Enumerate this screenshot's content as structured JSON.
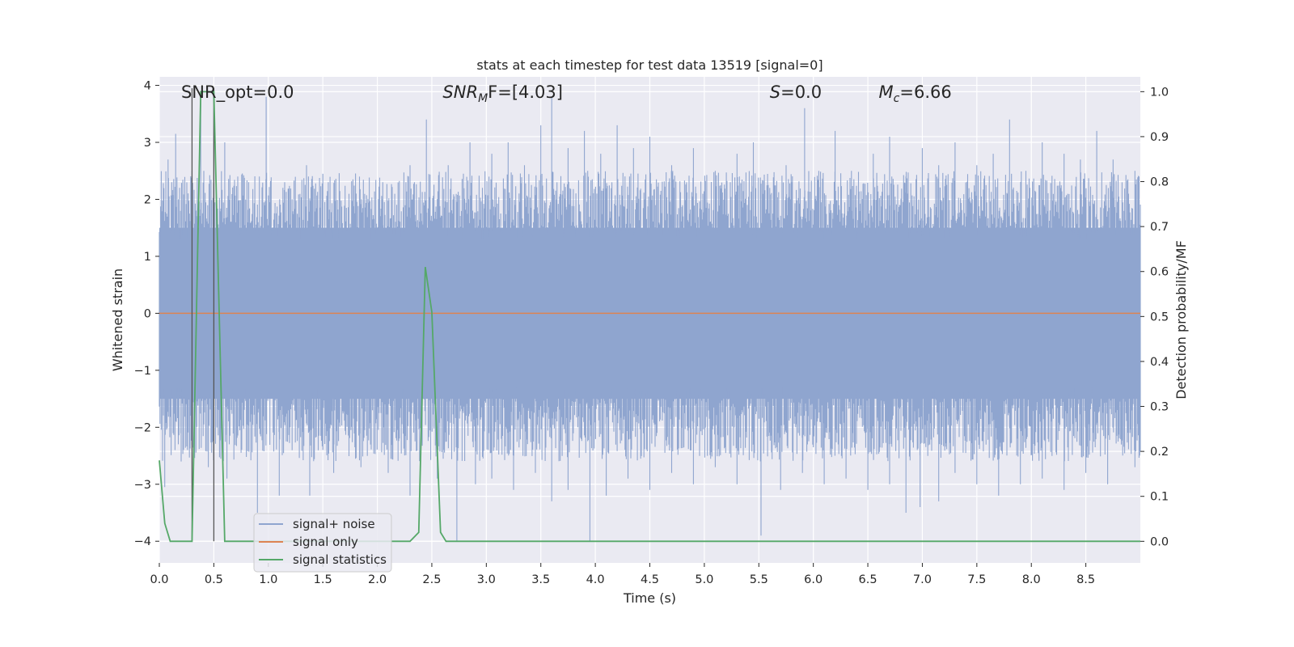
{
  "chart_data": {
    "type": "line",
    "title": "stats at each timestep for test data 13519 [signal=0]",
    "xlabel": "Time (s)",
    "ylabel": "Whitened strain",
    "y2label": "Detection probability/MF",
    "xlim": [
      0.0,
      9.0
    ],
    "ylim": [
      -4.38,
      4.15
    ],
    "y2lim": [
      -0.048,
      1.033
    ],
    "x_ticks": [
      0.0,
      0.5,
      1.0,
      1.5,
      2.0,
      2.5,
      3.0,
      3.5,
      4.0,
      4.5,
      5.0,
      5.5,
      6.0,
      6.5,
      7.0,
      7.5,
      8.0,
      8.5
    ],
    "x_tick_labels": [
      "0.0",
      "0.5",
      "1.0",
      "1.5",
      "2.0",
      "2.5",
      "3.0",
      "3.5",
      "4.0",
      "4.5",
      "5.0",
      "5.5",
      "6.0",
      "6.5",
      "7.0",
      "7.5",
      "8.0",
      "8.5"
    ],
    "y_ticks": [
      -4,
      -3,
      -2,
      -1,
      0,
      1,
      2,
      3,
      4
    ],
    "y_tick_labels": [
      "−4",
      "−3",
      "−2",
      "−1",
      "0",
      "1",
      "2",
      "3",
      "4"
    ],
    "y2_ticks": [
      0.0,
      0.1,
      0.2,
      0.3,
      0.4,
      0.5,
      0.6,
      0.7,
      0.8,
      0.9,
      1.0
    ],
    "y2_tick_labels": [
      "0.0",
      "0.1",
      "0.2",
      "0.3",
      "0.4",
      "0.5",
      "0.6",
      "0.7",
      "0.8",
      "0.9",
      "1.0"
    ],
    "grid": true,
    "legend_position": "bottom-left",
    "annotations": [
      {
        "label": "SNR_opt=0.0",
        "x": 0.2
      },
      {
        "label": "SNR",
        "sub": "M",
        "suffix": "F=[4.03]",
        "x": 2.6
      },
      {
        "label": "S",
        "suffix": "=0.0",
        "x": 5.6
      },
      {
        "label": "M",
        "sub": "c",
        "suffix": "=6.66",
        "x": 6.6
      }
    ],
    "vlines": [
      0.3,
      0.5
    ],
    "series": [
      {
        "name": "signal+ noise",
        "color": "#8fa5cf",
        "description_values": "noise band approx. +/-1.5 with spikes",
        "envelope": {
          "x_start": 0.0,
          "x_end": 9.0,
          "y_core": [
            -1.5,
            1.5
          ],
          "y_max_peaks": [
            [
              0.08,
              2.7
            ],
            [
              0.15,
              3.15
            ],
            [
              0.3,
              2.5
            ],
            [
              0.38,
              3.9
            ],
            [
              0.5,
              3.6
            ],
            [
              0.6,
              3.0
            ],
            [
              0.72,
              2.4
            ],
            [
              0.82,
              2.3
            ],
            [
              0.98,
              3.8
            ],
            [
              1.15,
              2.3
            ],
            [
              1.35,
              2.6
            ],
            [
              1.55,
              2.3
            ],
            [
              1.8,
              2.4
            ],
            [
              2.05,
              2.3
            ],
            [
              2.3,
              2.6
            ],
            [
              2.45,
              3.4
            ],
            [
              2.65,
              2.6
            ],
            [
              2.85,
              3.0
            ],
            [
              3.05,
              2.8
            ],
            [
              3.2,
              3.0
            ],
            [
              3.35,
              2.6
            ],
            [
              3.5,
              3.3
            ],
            [
              3.6,
              3.8
            ],
            [
              3.75,
              2.9
            ],
            [
              3.9,
              3.2
            ],
            [
              4.05,
              2.8
            ],
            [
              4.2,
              3.3
            ],
            [
              4.35,
              2.9
            ],
            [
              4.5,
              3.1
            ],
            [
              4.7,
              2.6
            ],
            [
              4.9,
              2.9
            ],
            [
              5.1,
              2.5
            ],
            [
              5.3,
              2.8
            ],
            [
              5.45,
              3.0
            ],
            [
              5.6,
              2.2
            ],
            [
              5.75,
              2.6
            ],
            [
              5.92,
              3.6
            ],
            [
              6.05,
              2.5
            ],
            [
              6.2,
              3.2
            ],
            [
              6.35,
              2.5
            ],
            [
              6.55,
              2.8
            ],
            [
              6.7,
              3.1
            ],
            [
              6.85,
              2.4
            ],
            [
              7.0,
              2.9
            ],
            [
              7.15,
              2.6
            ],
            [
              7.3,
              3.0
            ],
            [
              7.5,
              2.6
            ],
            [
              7.65,
              2.8
            ],
            [
              7.8,
              3.4
            ],
            [
              7.95,
              2.5
            ],
            [
              8.1,
              3.0
            ],
            [
              8.3,
              2.8
            ],
            [
              8.45,
              2.7
            ],
            [
              8.6,
              3.2
            ],
            [
              8.75,
              2.7
            ],
            [
              8.95,
              2.5
            ]
          ],
          "y_min_peaks": [
            [
              0.05,
              -3.05
            ],
            [
              0.2,
              -2.6
            ],
            [
              0.45,
              -2.7
            ],
            [
              0.62,
              -2.9
            ],
            [
              0.9,
              -3.5
            ],
            [
              1.1,
              -3.2
            ],
            [
              1.38,
              -3.2
            ],
            [
              1.6,
              -2.8
            ],
            [
              1.85,
              -2.7
            ],
            [
              2.1,
              -2.8
            ],
            [
              2.3,
              -3.2
            ],
            [
              2.55,
              -2.9
            ],
            [
              2.73,
              -4.0
            ],
            [
              2.9,
              -3.0
            ],
            [
              3.05,
              -2.9
            ],
            [
              3.25,
              -3.1
            ],
            [
              3.45,
              -2.8
            ],
            [
              3.6,
              -3.3
            ],
            [
              3.75,
              -3.1
            ],
            [
              3.95,
              -4.0
            ],
            [
              4.1,
              -3.2
            ],
            [
              4.3,
              -2.9
            ],
            [
              4.5,
              -3.1
            ],
            [
              4.7,
              -2.8
            ],
            [
              4.9,
              -3.0
            ],
            [
              5.1,
              -2.7
            ],
            [
              5.3,
              -3.0
            ],
            [
              5.52,
              -3.9
            ],
            [
              5.7,
              -3.1
            ],
            [
              5.9,
              -2.8
            ],
            [
              6.1,
              -3.0
            ],
            [
              6.3,
              -2.9
            ],
            [
              6.5,
              -3.1
            ],
            [
              6.7,
              -3.0
            ],
            [
              6.85,
              -3.5
            ],
            [
              6.98,
              -3.4
            ],
            [
              7.15,
              -3.3
            ],
            [
              7.3,
              -2.8
            ],
            [
              7.5,
              -3.0
            ],
            [
              7.7,
              -3.2
            ],
            [
              7.9,
              -3.0
            ],
            [
              8.1,
              -2.9
            ],
            [
              8.3,
              -3.1
            ],
            [
              8.5,
              -2.8
            ],
            [
              8.7,
              -3.0
            ],
            [
              8.95,
              -2.7
            ]
          ]
        }
      },
      {
        "name": "signal only",
        "color": "#dd8452",
        "x": [
          0.0,
          9.0
        ],
        "y": [
          0.0,
          0.0
        ]
      },
      {
        "name": "signal statistics",
        "color": "#55a868",
        "axis": "right",
        "x": [
          0.0,
          0.05,
          0.1,
          0.2,
          0.3,
          0.38,
          0.5,
          0.6,
          0.65,
          0.8,
          2.3,
          2.38,
          2.44,
          2.5,
          2.58,
          2.63,
          2.7,
          9.0
        ],
        "y": [
          0.18,
          0.04,
          0.0,
          0.0,
          0.0,
          1.0,
          1.0,
          0.0,
          0.0,
          0.0,
          0.0,
          0.02,
          0.61,
          0.51,
          0.02,
          0.0,
          0.0,
          0.0
        ]
      }
    ]
  }
}
